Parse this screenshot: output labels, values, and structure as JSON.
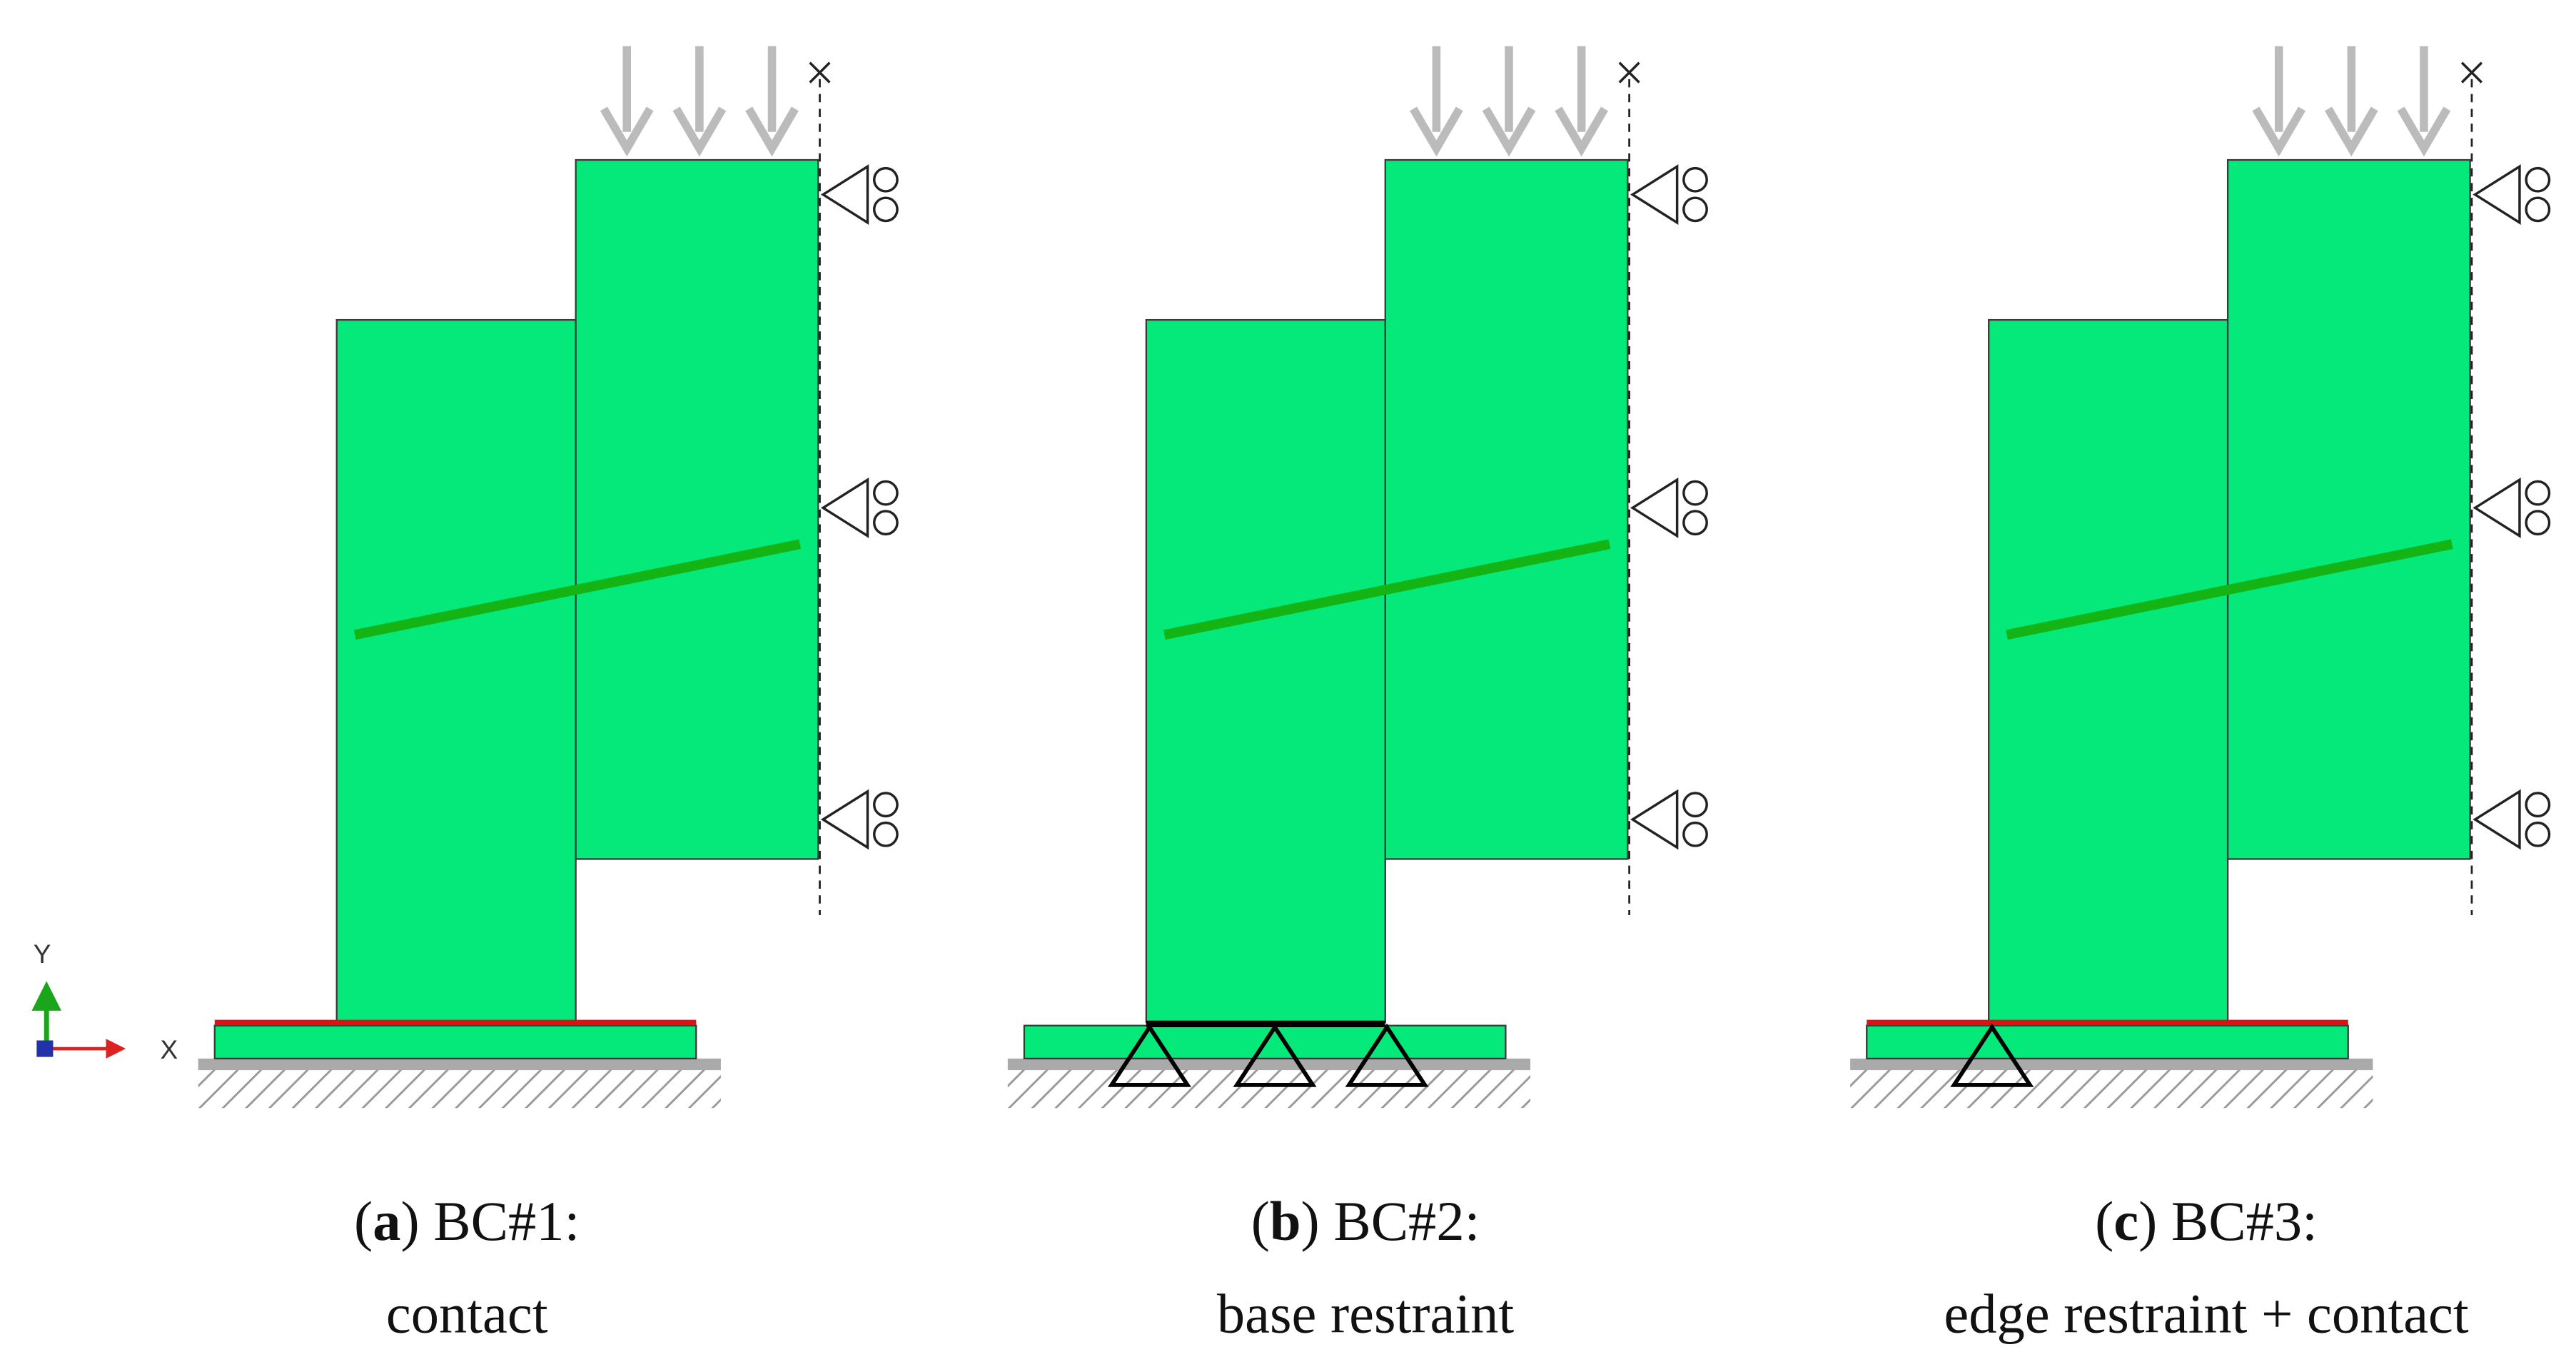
{
  "triad": {
    "y": "Y",
    "x": "X"
  },
  "panels": [
    {
      "prefix": "(",
      "letter": "a",
      "suffix": ") BC#1:",
      "description": "contact"
    },
    {
      "prefix": "(",
      "letter": "b",
      "suffix": ") BC#2:",
      "description": "base restraint"
    },
    {
      "prefix": "(",
      "letter": "c",
      "suffix": ") BC#3:",
      "description": "edge restraint + contact"
    }
  ]
}
